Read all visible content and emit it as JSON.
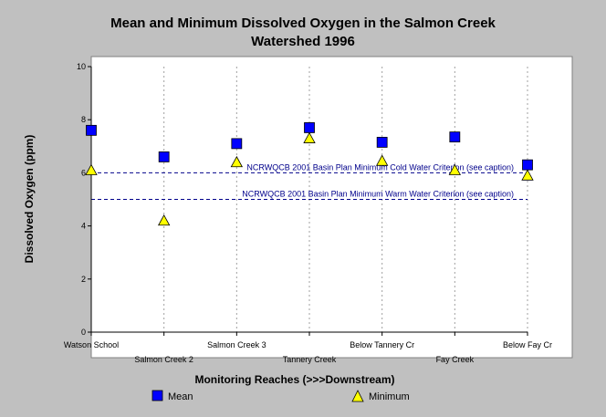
{
  "chart_data": {
    "type": "scatter",
    "title_lines": [
      "Mean and Minimum Dissolved Oxygen in the Salmon Creek",
      "Watershed 1996"
    ],
    "xlabel": "Monitoring Reaches (>>>Downstream)",
    "ylabel": "Dissolved Oxygen (ppm)",
    "ylim": [
      0,
      10
    ],
    "yticks": [
      "0",
      "2",
      "4",
      "6",
      "8",
      "10"
    ],
    "categories": [
      "Watson School",
      "Salmon Creek 2",
      "Salmon Creek 3",
      "Tannery Creek",
      "Below Tannery Cr",
      "Fay Creek",
      "Below Fay Cr"
    ],
    "series": [
      {
        "name": "Mean",
        "marker": "square",
        "color": "#0000ff",
        "values": [
          7.6,
          6.6,
          7.1,
          7.7,
          7.15,
          7.35,
          6.3
        ]
      },
      {
        "name": "Minimum",
        "marker": "triangle",
        "color": "#ffff00",
        "values": [
          6.1,
          4.2,
          6.4,
          7.3,
          6.45,
          6.1,
          5.9
        ]
      }
    ],
    "reference_lines": [
      {
        "label": "NCRWQCB 2001 Basin Plan Minimum Cold Water Criterion (see caption)",
        "value": 6.0,
        "color": "#00008b",
        "style": "dashed"
      },
      {
        "label": "NCRWQCB 2001 Basin Plan Minimum Warm Water Criterion (see caption)",
        "value": 5.0,
        "color": "#00008b",
        "style": "dashed"
      }
    ],
    "grid": "vertical",
    "legend_placement": "bottom"
  }
}
